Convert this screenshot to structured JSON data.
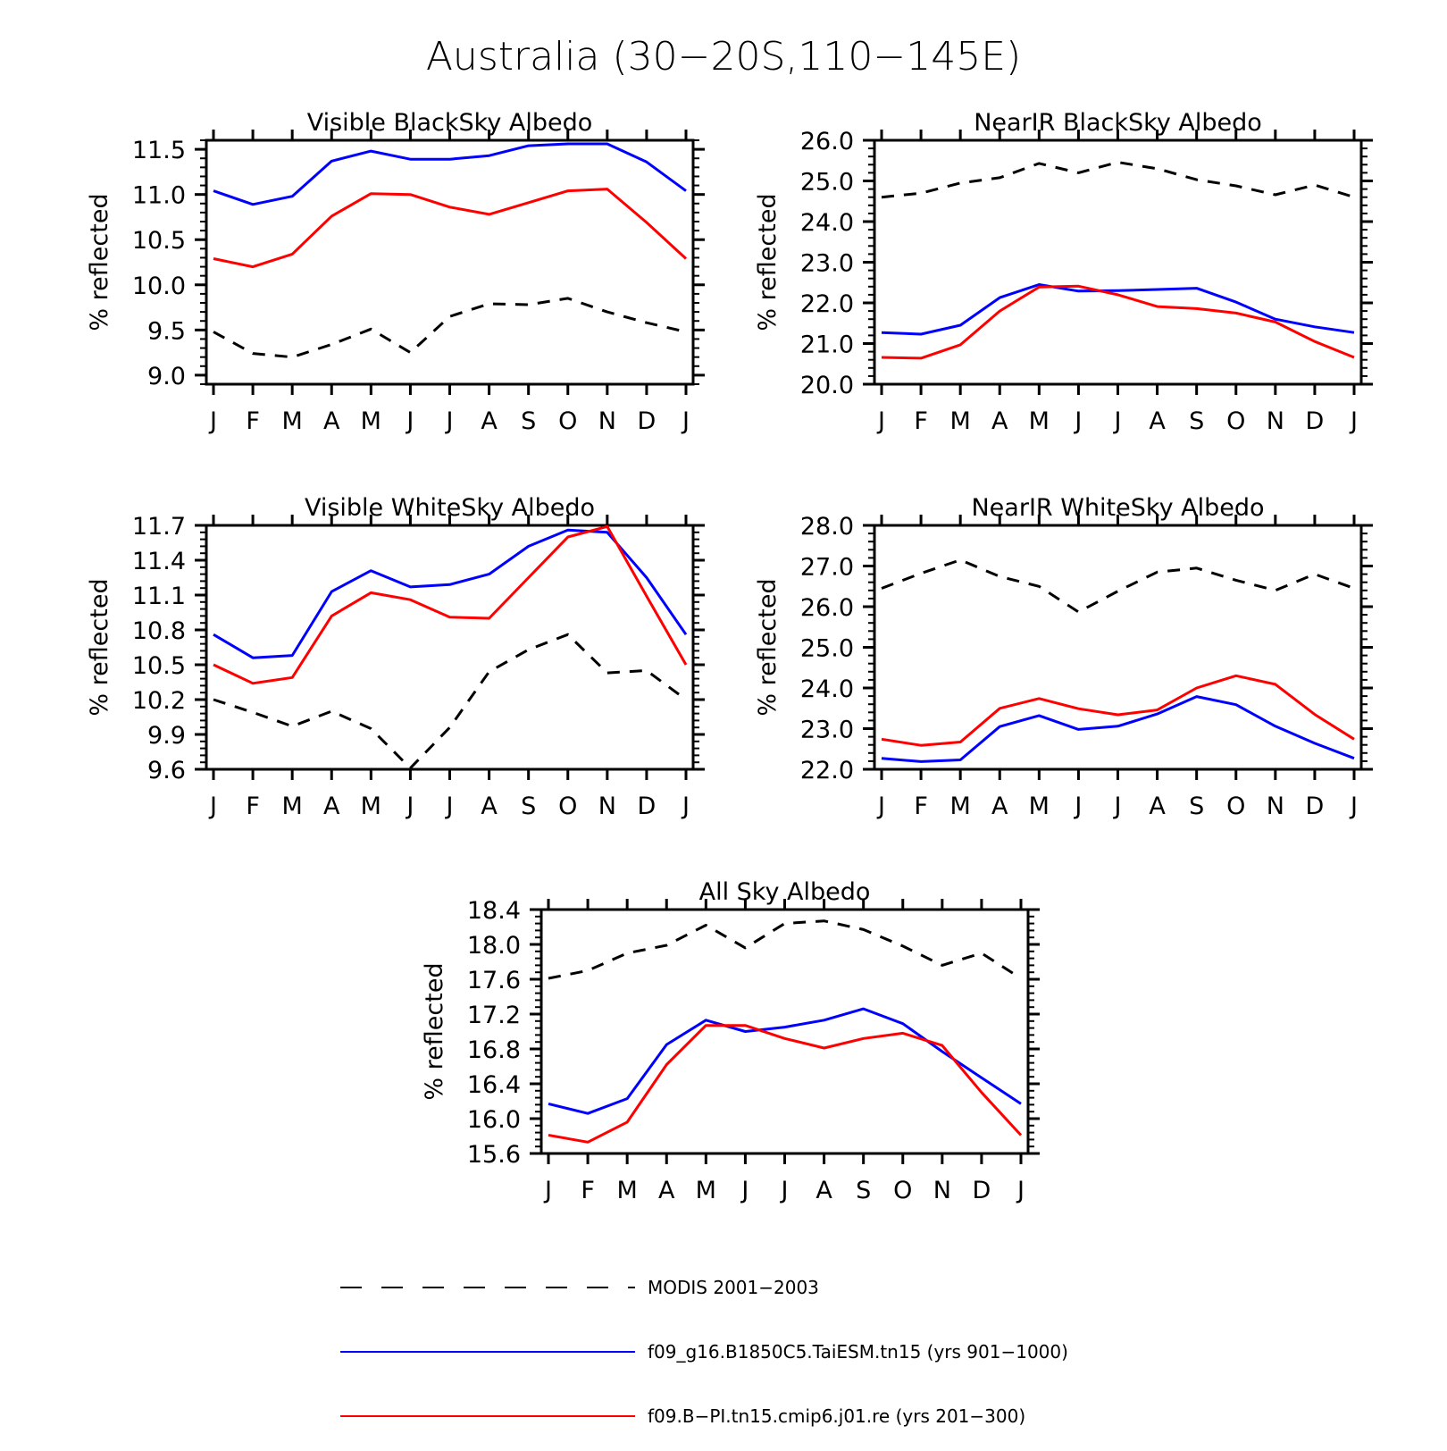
{
  "figure": {
    "title": "Australia (30−20S,110−145E)"
  },
  "series_styles": [
    {
      "key": "modis",
      "color": "#000000",
      "dash": true
    },
    {
      "key": "taiesm",
      "color": "#0000ff",
      "dash": false
    },
    {
      "key": "cmip6",
      "color": "#ff0000",
      "dash": false
    }
  ],
  "legend": [
    {
      "series": "modis",
      "label": "MODIS 2001−2003"
    },
    {
      "series": "taiesm",
      "label": "f09_g16.B1850C5.TaiESM.tn15 (yrs 901−1000)"
    },
    {
      "series": "cmip6",
      "label": "f09.B−PI.tn15.cmip6.j01.re (yrs 201−300)"
    }
  ],
  "chart_data": [
    {
      "type": "line",
      "title": "Visible BlackSky Albedo",
      "ylabel": "% reflected",
      "categories": [
        "J",
        "F",
        "M",
        "A",
        "M",
        "J",
        "J",
        "A",
        "S",
        "O",
        "N",
        "D",
        "J"
      ],
      "ylim": [
        8.9,
        11.6
      ],
      "yticks": [
        "9.0",
        "9.5",
        "10.0",
        "10.5",
        "11.0",
        "11.5"
      ],
      "series": [
        {
          "name": "MODIS 2001−2003",
          "values": [
            9.48,
            9.24,
            9.2,
            9.34,
            9.51,
            9.25,
            9.65,
            9.79,
            9.78,
            9.85,
            9.7,
            9.58,
            9.48
          ]
        },
        {
          "name": "f09_g16.B1850C5.TaiESM.tn15 (yrs 901−1000)",
          "values": [
            11.04,
            10.89,
            10.98,
            11.37,
            11.48,
            11.39,
            11.39,
            11.43,
            11.54,
            11.56,
            11.56,
            11.36,
            11.04
          ]
        },
        {
          "name": "f09.B−PI.tn15.cmip6.j01.re (yrs 201−300)",
          "values": [
            10.29,
            10.2,
            10.34,
            10.76,
            11.01,
            11.0,
            10.86,
            10.78,
            10.91,
            11.04,
            11.06,
            10.69,
            10.29
          ]
        }
      ]
    },
    {
      "type": "line",
      "title": "NearIR BlackSky Albedo",
      "ylabel": "% reflected",
      "categories": [
        "J",
        "F",
        "M",
        "A",
        "M",
        "J",
        "J",
        "A",
        "S",
        "O",
        "N",
        "D",
        "J"
      ],
      "ylim": [
        20.0,
        26.0
      ],
      "yticks": [
        "20.0",
        "21.0",
        "22.0",
        "23.0",
        "24.0",
        "25.0",
        "26.0"
      ],
      "series": [
        {
          "name": "MODIS 2001−2003",
          "values": [
            24.6,
            24.7,
            24.95,
            25.08,
            25.43,
            25.2,
            25.46,
            25.3,
            25.03,
            24.88,
            24.66,
            24.9,
            24.6
          ]
        },
        {
          "name": "f09_g16.B1850C5.TaiESM.tn15 (yrs 901−1000)",
          "values": [
            21.27,
            21.23,
            21.45,
            22.13,
            22.45,
            22.29,
            22.3,
            22.33,
            22.36,
            22.02,
            21.6,
            21.41,
            21.27
          ]
        },
        {
          "name": "f09.B−PI.tn15.cmip6.j01.re (yrs 201−300)",
          "values": [
            20.66,
            20.64,
            20.97,
            21.8,
            22.39,
            22.41,
            22.2,
            21.91,
            21.86,
            21.75,
            21.53,
            21.05,
            20.66
          ]
        }
      ]
    },
    {
      "type": "line",
      "title": "Visible WhiteSky Albedo",
      "ylabel": "% reflected",
      "categories": [
        "J",
        "F",
        "M",
        "A",
        "M",
        "J",
        "J",
        "A",
        "S",
        "O",
        "N",
        "D",
        "J"
      ],
      "ylim": [
        9.6,
        11.7
      ],
      "yticks": [
        "9.6",
        "9.9",
        "10.2",
        "10.5",
        "10.8",
        "11.1",
        "11.4",
        "11.7"
      ],
      "series": [
        {
          "name": "MODIS 2001−2003",
          "values": [
            10.2,
            10.09,
            9.97,
            10.1,
            9.95,
            9.61,
            9.96,
            10.44,
            10.63,
            10.76,
            10.43,
            10.45,
            10.2
          ]
        },
        {
          "name": "f09_g16.B1850C5.TaiESM.tn15 (yrs 901−1000)",
          "values": [
            10.76,
            10.56,
            10.58,
            11.13,
            11.31,
            11.17,
            11.19,
            11.28,
            11.52,
            11.66,
            11.64,
            11.25,
            10.76
          ]
        },
        {
          "name": "f09.B−PI.tn15.cmip6.j01.re (yrs 201−300)",
          "values": [
            10.5,
            10.34,
            10.39,
            10.92,
            11.12,
            11.06,
            10.91,
            10.9,
            11.25,
            11.6,
            11.69,
            11.09,
            10.5
          ]
        }
      ]
    },
    {
      "type": "line",
      "title": "NearIR WhiteSky Albedo",
      "ylabel": "% reflected",
      "categories": [
        "J",
        "F",
        "M",
        "A",
        "M",
        "J",
        "J",
        "A",
        "S",
        "O",
        "N",
        "D",
        "J"
      ],
      "ylim": [
        22.0,
        28.0
      ],
      "yticks": [
        "22.0",
        "23.0",
        "24.0",
        "25.0",
        "26.0",
        "27.0",
        "28.0"
      ],
      "series": [
        {
          "name": "MODIS 2001−2003",
          "values": [
            26.45,
            26.82,
            27.15,
            26.74,
            26.5,
            25.87,
            26.38,
            26.85,
            26.95,
            26.65,
            26.4,
            26.8,
            26.45
          ]
        },
        {
          "name": "f09_g16.B1850C5.TaiESM.tn15 (yrs 901−1000)",
          "values": [
            22.27,
            22.19,
            22.23,
            23.05,
            23.32,
            22.98,
            23.06,
            23.36,
            23.79,
            23.59,
            23.06,
            22.64,
            22.27
          ]
        },
        {
          "name": "f09.B−PI.tn15.cmip6.j01.re (yrs 201−300)",
          "values": [
            22.74,
            22.59,
            22.67,
            23.5,
            23.74,
            23.49,
            23.34,
            23.46,
            24.0,
            24.3,
            24.09,
            23.35,
            22.74
          ]
        }
      ]
    },
    {
      "type": "line",
      "title": "All Sky Albedo",
      "ylabel": "% reflected",
      "categories": [
        "J",
        "F",
        "M",
        "A",
        "M",
        "J",
        "J",
        "A",
        "S",
        "O",
        "N",
        "D",
        "J"
      ],
      "ylim": [
        15.6,
        18.4
      ],
      "yticks": [
        "15.6",
        "16.0",
        "16.4",
        "16.8",
        "17.2",
        "17.6",
        "18.0",
        "18.4"
      ],
      "series": [
        {
          "name": "MODIS 2001−2003",
          "values": [
            17.61,
            17.7,
            17.9,
            17.99,
            18.22,
            17.96,
            18.24,
            18.27,
            18.17,
            17.98,
            17.76,
            17.9,
            17.61
          ]
        },
        {
          "name": "f09_g16.B1850C5.TaiESM.tn15 (yrs 901−1000)",
          "values": [
            16.17,
            16.06,
            16.23,
            16.85,
            17.13,
            17.0,
            17.05,
            17.13,
            17.26,
            17.09,
            16.77,
            16.47,
            16.17
          ]
        },
        {
          "name": "f09.B−PI.tn15.cmip6.j01.re (yrs 201−300)",
          "values": [
            15.81,
            15.73,
            15.96,
            16.62,
            17.07,
            17.07,
            16.92,
            16.81,
            16.92,
            16.98,
            16.84,
            16.3,
            15.81
          ]
        }
      ]
    }
  ]
}
